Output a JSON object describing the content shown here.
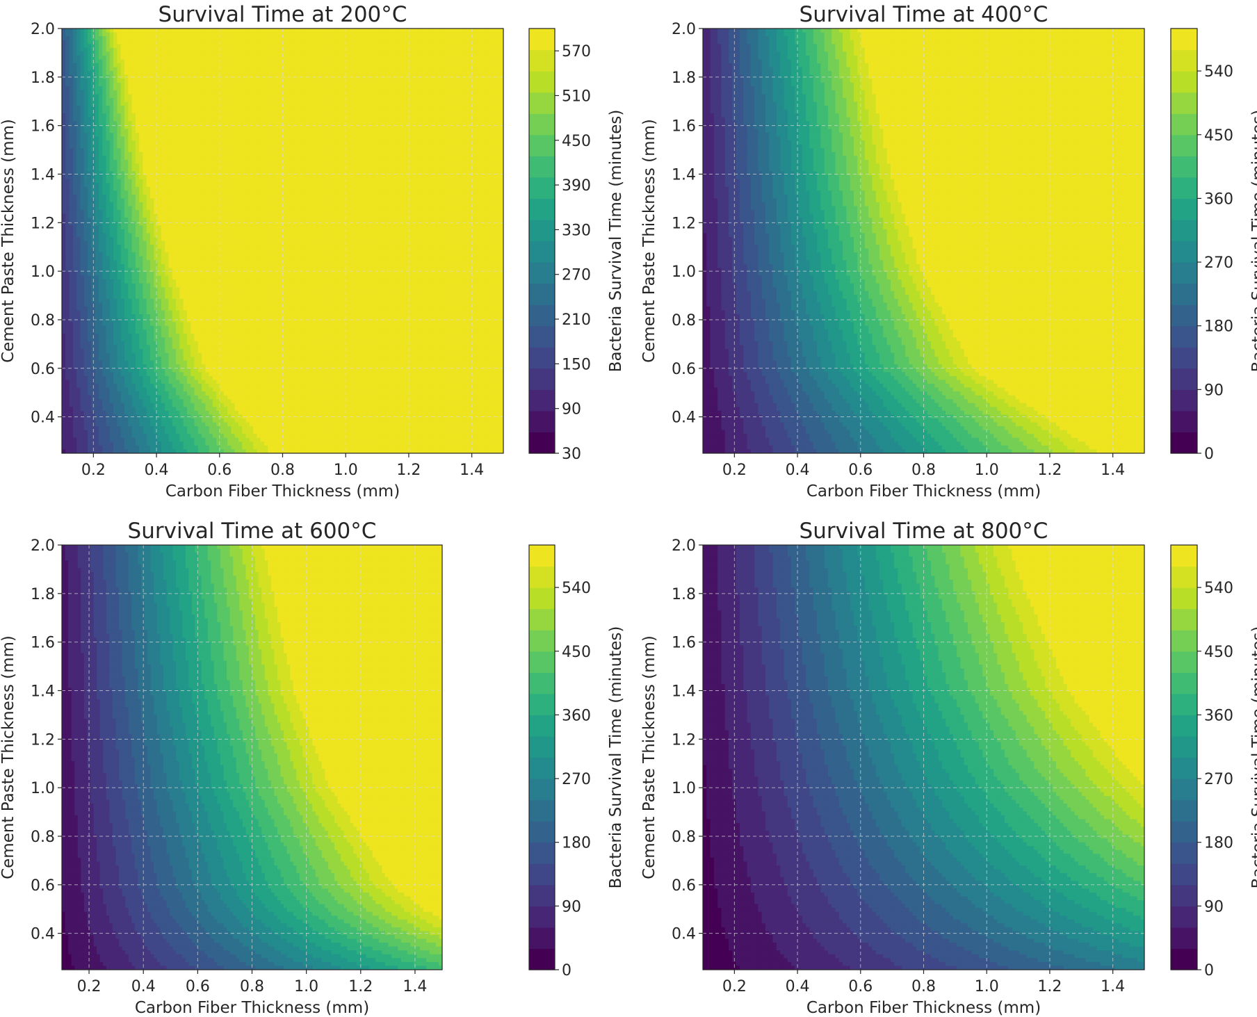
{
  "chart_data": [
    {
      "type": "heatmap",
      "title": "Survival Time at 200°C",
      "xlabel": "Carbon Fiber Thickness (mm)",
      "ylabel": "Cement Paste Thickness (mm)",
      "colorbar_label": "Bacteria Survival Time (minutes)",
      "colormap": "viridis",
      "xlim": [
        0.1,
        1.5
      ],
      "ylim": [
        0.25,
        2.0
      ],
      "x_ticks": [
        "0.2",
        "0.4",
        "0.6",
        "0.8",
        "1.0",
        "1.2",
        "1.4"
      ],
      "y_ticks": [
        "0.4",
        "0.6",
        "0.8",
        "1.0",
        "1.2",
        "1.4",
        "1.6",
        "1.8",
        "2.0"
      ],
      "colorbar_range": [
        30,
        600
      ],
      "colorbar_ticks": [
        "30",
        "90",
        "150",
        "210",
        "270",
        "330",
        "390",
        "450",
        "510",
        "570"
      ],
      "levels": 20,
      "saturation_boundary": {
        "description": "x where survival reaches the colorbar maximum, per y",
        "y": [
          0.25,
          0.6,
          1.0,
          1.4,
          1.8,
          2.0
        ],
        "x": [
          0.8,
          0.58,
          0.47,
          0.38,
          0.32,
          0.28
        ]
      },
      "grid": true
    },
    {
      "type": "heatmap",
      "title": "Survival Time at 400°C",
      "xlabel": "Carbon Fiber Thickness (mm)",
      "ylabel": "Cement Paste Thickness (mm)",
      "colorbar_label": "Bacteria Survival Time (minutes)",
      "colormap": "viridis",
      "xlim": [
        0.1,
        1.5
      ],
      "ylim": [
        0.25,
        2.0
      ],
      "x_ticks": [
        "0.2",
        "0.4",
        "0.6",
        "0.8",
        "1.0",
        "1.2",
        "1.4"
      ],
      "y_ticks": [
        "0.4",
        "0.6",
        "0.8",
        "1.0",
        "1.2",
        "1.4",
        "1.6",
        "1.8",
        "2.0"
      ],
      "colorbar_range": [
        0,
        600
      ],
      "colorbar_ticks": [
        "0",
        "90",
        "180",
        "270",
        "360",
        "450",
        "540"
      ],
      "levels": 20,
      "saturation_boundary": {
        "description": "x where survival reaches the colorbar maximum, per y",
        "y": [
          0.25,
          0.6,
          1.0,
          1.4,
          1.8,
          2.0
        ],
        "x": [
          1.42,
          1.0,
          0.83,
          0.73,
          0.66,
          0.62
        ]
      },
      "grid": true
    },
    {
      "type": "heatmap",
      "title": "Survival Time at 600°C",
      "xlabel": "Carbon Fiber Thickness (mm)",
      "ylabel": "Cement Paste Thickness (mm)",
      "colorbar_label": "Bacteria Survival Time (minutes)",
      "colormap": "viridis",
      "xlim": [
        0.1,
        1.5
      ],
      "ylim": [
        0.25,
        2.0
      ],
      "x_ticks": [
        "0.2",
        "0.4",
        "0.6",
        "0.8",
        "1.0",
        "1.2",
        "1.4"
      ],
      "y_ticks": [
        "0.4",
        "0.6",
        "0.8",
        "1.0",
        "1.2",
        "1.4",
        "1.6",
        "1.8",
        "2.0"
      ],
      "colorbar_range": [
        0,
        600
      ],
      "colorbar_ticks": [
        "0",
        "90",
        "180",
        "270",
        "360",
        "450",
        "540"
      ],
      "levels": 20,
      "saturation_boundary": {
        "description": "x where survival reaches the colorbar maximum, per y",
        "y": [
          0.5,
          0.6,
          1.0,
          1.4,
          1.8,
          2.0
        ],
        "x": [
          1.5,
          1.38,
          1.14,
          1.0,
          0.92,
          0.88
        ]
      },
      "grid": true
    },
    {
      "type": "heatmap",
      "title": "Survival Time at 800°C",
      "xlabel": "Carbon Fiber Thickness (mm)",
      "ylabel": "Cement Paste Thickness (mm)",
      "colorbar_label": "Bacteria Survival Time (minutes)",
      "colormap": "viridis",
      "xlim": [
        0.1,
        1.5
      ],
      "ylim": [
        0.25,
        2.0
      ],
      "x_ticks": [
        "0.2",
        "0.4",
        "0.6",
        "0.8",
        "1.0",
        "1.2",
        "1.4"
      ],
      "y_ticks": [
        "0.4",
        "0.6",
        "0.8",
        "1.0",
        "1.2",
        "1.4",
        "1.6",
        "1.8",
        "2.0"
      ],
      "colorbar_range": [
        0,
        600
      ],
      "colorbar_ticks": [
        "0",
        "90",
        "180",
        "270",
        "360",
        "450",
        "540"
      ],
      "levels": 20,
      "saturation_boundary": {
        "description": "x where survival reaches the colorbar maximum, per y",
        "y": [
          1.1,
          1.4,
          1.8,
          2.0
        ],
        "x": [
          1.5,
          1.32,
          1.18,
          1.12
        ]
      },
      "grid": true
    }
  ]
}
